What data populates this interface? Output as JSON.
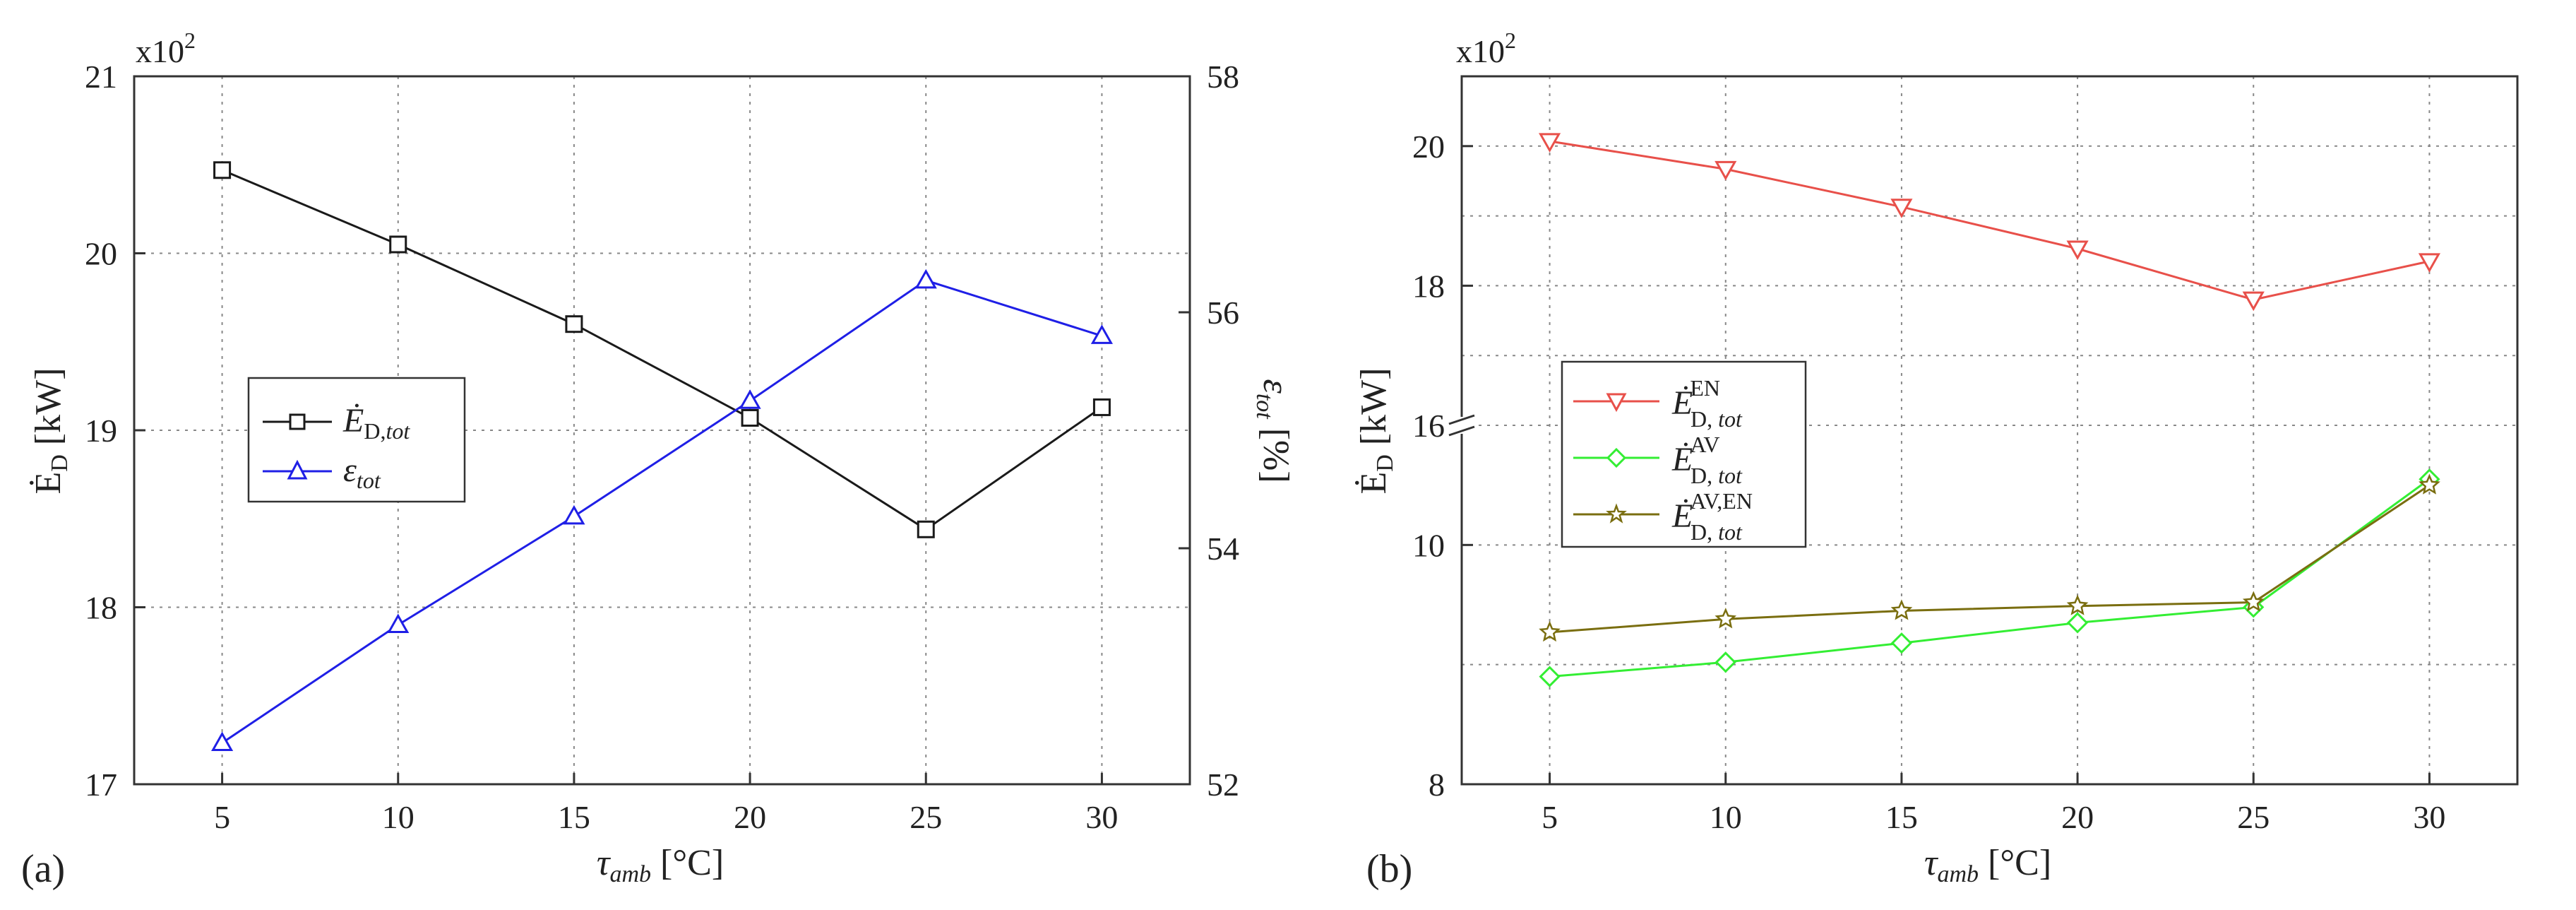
{
  "figure": {
    "panel_a_label": "(a)",
    "panel_b_label": "(b)"
  },
  "chart_data": [
    {
      "id": "a",
      "type": "line",
      "x": [
        5,
        10,
        15,
        20,
        25,
        30
      ],
      "xlim": [
        2.5,
        32.5
      ],
      "xticks": [
        "5",
        "10",
        "15",
        "20",
        "25",
        "30"
      ],
      "xlabel_sym": "τ",
      "xlabel_sub": "amb",
      "xlabel_unit": " [°C]",
      "ylabel_left_sym": "Ė",
      "ylabel_left_sub": "D",
      "ylabel_left_unit": " [kW]",
      "ylim_left": [
        17,
        21
      ],
      "yticks_left": [
        "17",
        "18",
        "19",
        "20",
        "21"
      ],
      "multiplier_left": "x10",
      "multiplier_exp": "2",
      "ylabel_right_sym": "ε",
      "ylabel_right_sub": "tot",
      "ylabel_right_unit": " [%]",
      "ylim_right": [
        52,
        58
      ],
      "yticks_right": [
        "52",
        "54",
        "56",
        "58"
      ],
      "legend_position": "center-left",
      "series": [
        {
          "name": "Ė_D,tot",
          "legend_main": "Ė",
          "legend_sub": "D,",
          "legend_sub_italic": "tot",
          "axis": "left",
          "color": "#1a1a1a",
          "marker": "square",
          "values": [
            20.47,
            20.05,
            19.6,
            19.07,
            18.44,
            19.13
          ]
        },
        {
          "name": "ε_tot",
          "legend_main": "ε",
          "legend_sub": "",
          "legend_sub_italic": "tot",
          "axis": "right",
          "color": "#1f1fe6",
          "marker": "triangle-up",
          "values": [
            52.35,
            53.35,
            54.27,
            55.25,
            56.27,
            55.8
          ]
        }
      ]
    },
    {
      "id": "b",
      "type": "line",
      "x": [
        5,
        10,
        15,
        20,
        25,
        30
      ],
      "xlim": [
        2.5,
        32.5
      ],
      "xticks": [
        "5",
        "10",
        "15",
        "20",
        "25",
        "30"
      ],
      "xlabel_sym": "τ",
      "xlabel_sub": "amb",
      "xlabel_unit": " [°C]",
      "ylabel_sym": "Ė",
      "ylabel_sub": "D",
      "ylabel_unit": " [kW]",
      "multiplier": "x10",
      "multiplier_exp": "2",
      "axis_break": true,
      "upper_ylim": [
        16,
        21
      ],
      "lower_ylim": [
        8,
        11
      ],
      "yticks": [
        "8",
        "10",
        "16",
        "18",
        "20"
      ],
      "legend_position": "center-left",
      "series": [
        {
          "name": "Ė_D,tot^EN",
          "legend_main": "Ė",
          "legend_sup": "EN",
          "legend_sub": "D, ",
          "legend_sub_italic": "tot",
          "color": "#e8504a",
          "marker": "triangle-down",
          "values": [
            20.07,
            19.67,
            19.13,
            18.53,
            17.8,
            18.35
          ]
        },
        {
          "name": "Ė_D,tot^AV",
          "legend_main": "Ė",
          "legend_sup": "AV",
          "legend_sub": "D, ",
          "legend_sub_italic": "tot",
          "color": "#33ee33",
          "marker": "diamond",
          "values": [
            8.9,
            9.02,
            9.18,
            9.35,
            9.48,
            10.55
          ]
        },
        {
          "name": "Ė_D,tot^AV,EN",
          "legend_main": "Ė",
          "legend_sup": "AV,EN",
          "legend_sub": "D, ",
          "legend_sub_italic": "tot",
          "color": "#7a6e10",
          "marker": "star",
          "values": [
            9.27,
            9.38,
            9.45,
            9.49,
            9.52,
            10.5
          ]
        }
      ]
    }
  ]
}
